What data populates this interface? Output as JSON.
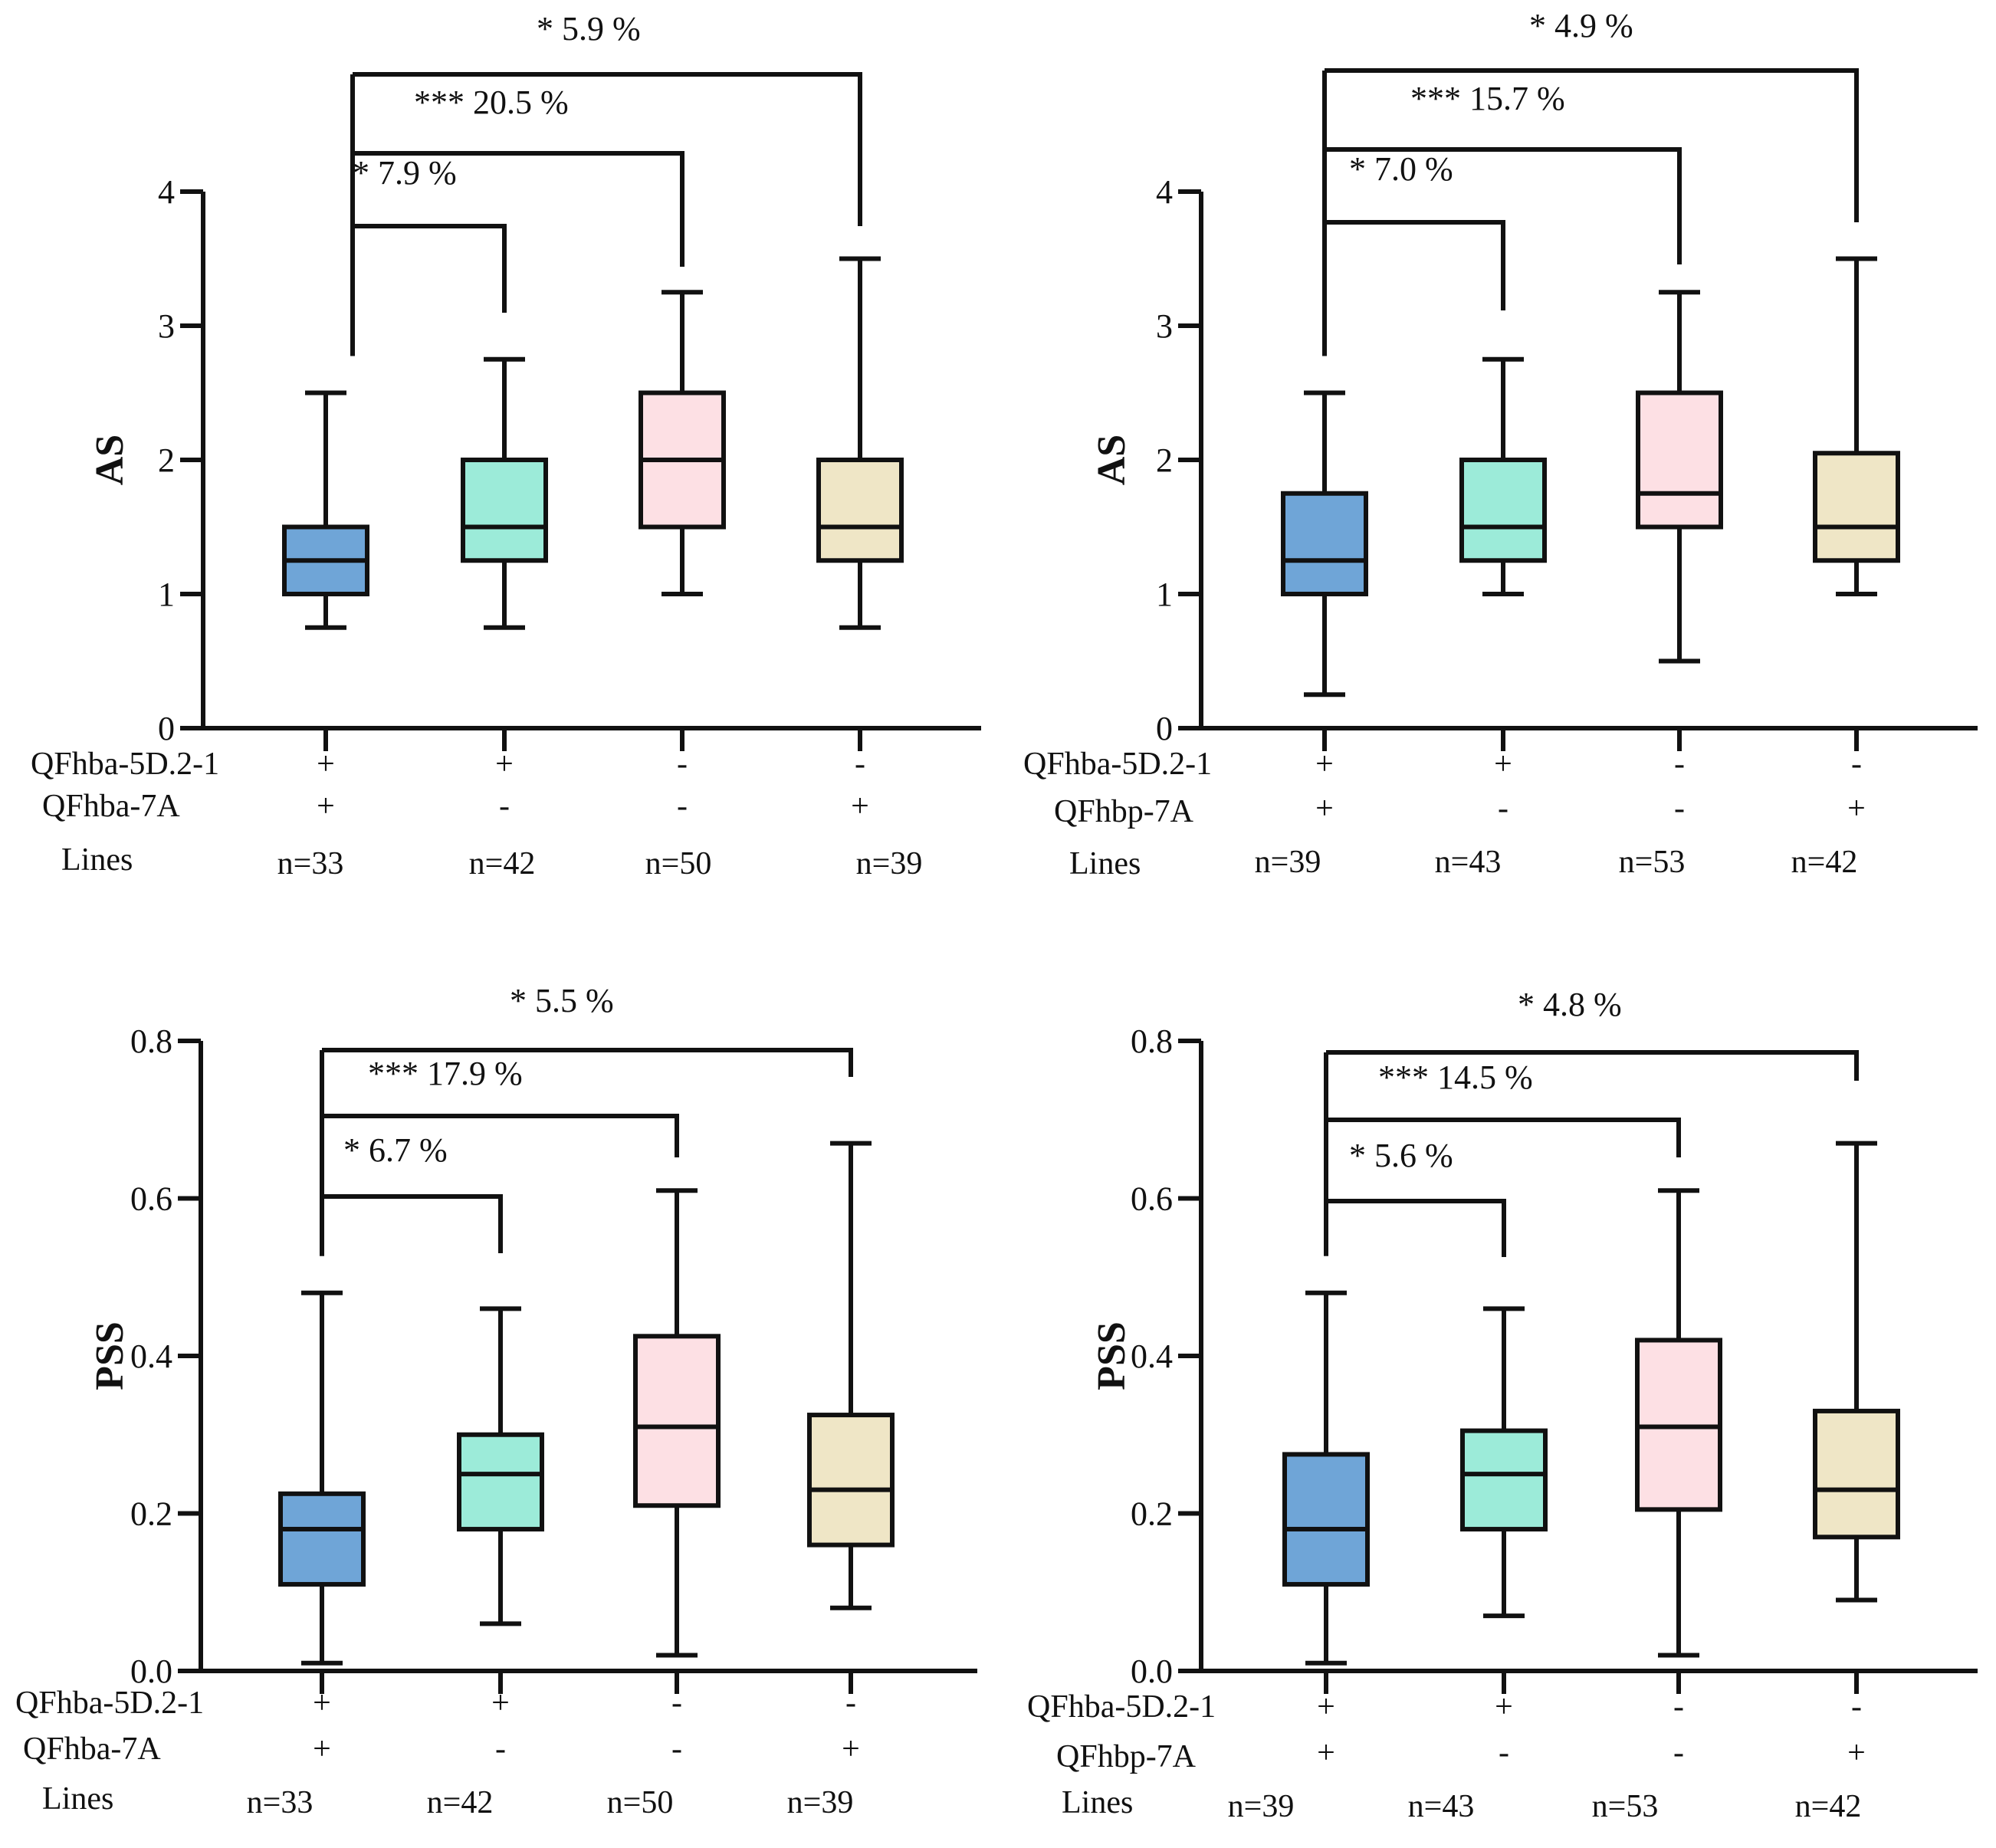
{
  "colors": {
    "g1": "#6fa5d7",
    "g2": "#9cebd9",
    "g3": "#fde0e4",
    "g4": "#efe6c6"
  },
  "chart_data": [
    {
      "id": "tl",
      "type": "boxplot",
      "ylabel": "AS",
      "ylim": [
        0,
        4
      ],
      "yticks": [
        0,
        1,
        2,
        3,
        4
      ],
      "ytick_labels": [
        "0",
        "1",
        "2",
        "3",
        "4"
      ],
      "groups": [
        {
          "whisker_low": 0.75,
          "q1": 1.0,
          "median": 1.25,
          "q3": 1.5,
          "whisker_high": 2.5
        },
        {
          "whisker_low": 0.75,
          "q1": 1.25,
          "median": 1.5,
          "q3": 2.0,
          "whisker_high": 2.75
        },
        {
          "whisker_low": 1.0,
          "q1": 1.5,
          "median": 2.0,
          "q3": 2.5,
          "whisker_high": 3.25
        },
        {
          "whisker_low": 0.75,
          "q1": 1.25,
          "median": 1.5,
          "q3": 2.0,
          "whisker_high": 3.5
        }
      ],
      "comparisons": [
        {
          "label": "* 7.9 %",
          "to": 1
        },
        {
          "label": "*** 20.5 %",
          "to": 2
        },
        {
          "label": "* 5.9 %",
          "to": 3
        }
      ],
      "rows": [
        {
          "label": "QFhba-5D.2-1",
          "values": [
            "+",
            "+",
            "-",
            "-"
          ]
        },
        {
          "label": "QFhba-7A",
          "values": [
            "+",
            "-",
            "-",
            "+"
          ]
        },
        {
          "label": "Lines",
          "values": [
            "n=33",
            "n=42",
            "n=50",
            "n=39"
          ]
        }
      ]
    },
    {
      "id": "tr",
      "type": "boxplot",
      "ylabel": "AS",
      "ylim": [
        0,
        4
      ],
      "yticks": [
        0,
        1,
        2,
        3,
        4
      ],
      "ytick_labels": [
        "0",
        "1",
        "2",
        "3",
        "4"
      ],
      "groups": [
        {
          "whisker_low": 0.25,
          "q1": 1.0,
          "median": 1.25,
          "q3": 1.75,
          "whisker_high": 2.5
        },
        {
          "whisker_low": 1.0,
          "q1": 1.25,
          "median": 1.5,
          "q3": 2.0,
          "whisker_high": 2.75
        },
        {
          "whisker_low": 0.5,
          "q1": 1.5,
          "median": 1.75,
          "q3": 2.5,
          "whisker_high": 3.25
        },
        {
          "whisker_low": 1.0,
          "q1": 1.25,
          "median": 1.5,
          "q3": 2.05,
          "whisker_high": 3.5
        }
      ],
      "comparisons": [
        {
          "label": "* 7.0 %",
          "to": 1
        },
        {
          "label": "*** 15.7 %",
          "to": 2
        },
        {
          "label": "* 4.9 %",
          "to": 3
        }
      ],
      "rows": [
        {
          "label": "QFhba-5D.2-1",
          "values": [
            "+",
            "+",
            "-",
            "-"
          ]
        },
        {
          "label": "QFhbp-7A",
          "values": [
            "+",
            "-",
            "-",
            "+"
          ]
        },
        {
          "label": "Lines",
          "values": [
            "n=39",
            "n=43",
            "n=53",
            "n=42"
          ]
        }
      ]
    },
    {
      "id": "bl",
      "type": "boxplot",
      "ylabel": "PSS",
      "ylim": [
        0,
        0.8
      ],
      "yticks": [
        0,
        0.2,
        0.4,
        0.6,
        0.8
      ],
      "ytick_labels": [
        "0.0",
        "0.2",
        "0.4",
        "0.6",
        "0.8"
      ],
      "groups": [
        {
          "whisker_low": 0.01,
          "q1": 0.11,
          "median": 0.18,
          "q3": 0.225,
          "whisker_high": 0.48
        },
        {
          "whisker_low": 0.06,
          "q1": 0.18,
          "median": 0.25,
          "q3": 0.3,
          "whisker_high": 0.46
        },
        {
          "whisker_low": 0.02,
          "q1": 0.21,
          "median": 0.31,
          "q3": 0.425,
          "whisker_high": 0.61
        },
        {
          "whisker_low": 0.08,
          "q1": 0.16,
          "median": 0.23,
          "q3": 0.325,
          "whisker_high": 0.67
        }
      ],
      "comparisons": [
        {
          "label": "* 6.7 %",
          "to": 1
        },
        {
          "label": "*** 17.9 %",
          "to": 2
        },
        {
          "label": "* 5.5 %",
          "to": 3
        }
      ],
      "rows": [
        {
          "label": "QFhba-5D.2-1",
          "values": [
            "+",
            "+",
            "-",
            "-"
          ]
        },
        {
          "label": "QFhba-7A",
          "values": [
            "+",
            "-",
            "-",
            "+"
          ]
        },
        {
          "label": "Lines",
          "values": [
            "n=33",
            "n=42",
            "n=50",
            "n=39"
          ]
        }
      ]
    },
    {
      "id": "br",
      "type": "boxplot",
      "ylabel": "PSS",
      "ylim": [
        0,
        0.8
      ],
      "yticks": [
        0,
        0.2,
        0.4,
        0.6,
        0.8
      ],
      "ytick_labels": [
        "0.0",
        "0.2",
        "0.4",
        "0.6",
        "0.8"
      ],
      "groups": [
        {
          "whisker_low": 0.01,
          "q1": 0.11,
          "median": 0.18,
          "q3": 0.275,
          "whisker_high": 0.48
        },
        {
          "whisker_low": 0.07,
          "q1": 0.18,
          "median": 0.25,
          "q3": 0.305,
          "whisker_high": 0.46
        },
        {
          "whisker_low": 0.02,
          "q1": 0.205,
          "median": 0.31,
          "q3": 0.42,
          "whisker_high": 0.61
        },
        {
          "whisker_low": 0.09,
          "q1": 0.17,
          "median": 0.23,
          "q3": 0.33,
          "whisker_high": 0.67
        }
      ],
      "comparisons": [
        {
          "label": "* 5.6 %",
          "to": 1
        },
        {
          "label": "*** 14.5 %",
          "to": 2
        },
        {
          "label": "* 4.8 %",
          "to": 3
        }
      ],
      "rows": [
        {
          "label": "QFhba-5D.2-1",
          "values": [
            "+",
            "+",
            "-",
            "-"
          ]
        },
        {
          "label": "QFhbp-7A",
          "values": [
            "+",
            "-",
            "-",
            "+"
          ]
        },
        {
          "label": "Lines",
          "values": [
            "n=39",
            "n=43",
            "n=53",
            "n=42"
          ]
        }
      ]
    }
  ]
}
